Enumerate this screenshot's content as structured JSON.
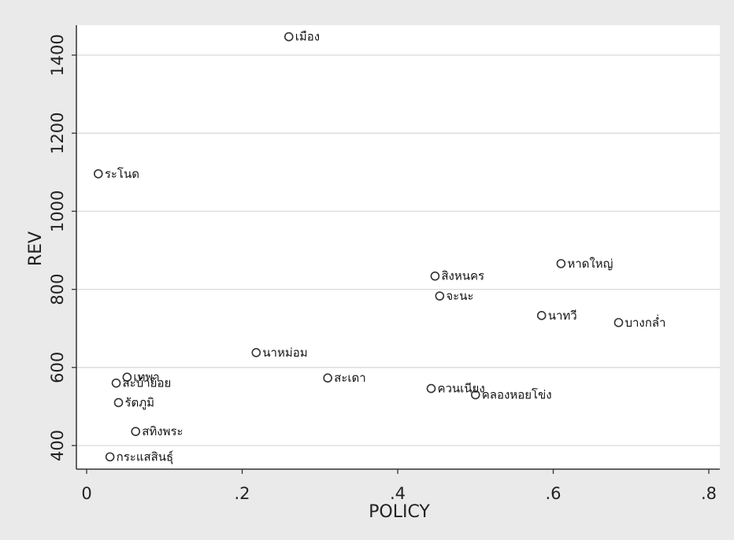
{
  "chart_data": {
    "type": "scatter",
    "xlabel": "POLICY",
    "ylabel": "REV",
    "xlim": [
      0,
      0.8
    ],
    "ylim": [
      350,
      1470
    ],
    "xticks": [
      0,
      0.2,
      0.4,
      0.6,
      0.8
    ],
    "xtick_labels": [
      "0",
      ".2",
      ".4",
      ".6",
      ".8"
    ],
    "yticks": [
      400,
      600,
      800,
      1000,
      1200,
      1400
    ],
    "ytick_labels": [
      "400",
      "600",
      "800",
      "1000",
      "1200",
      "1400"
    ],
    "grid": true,
    "marker": "hollow-circle",
    "points": [
      {
        "label": "เมือง",
        "x": 0.26,
        "y": 1447
      },
      {
        "label": "ระโนด",
        "x": 0.015,
        "y": 1096
      },
      {
        "label": "หาดใหญ่",
        "x": 0.61,
        "y": 866
      },
      {
        "label": "สิงหนคร",
        "x": 0.448,
        "y": 834
      },
      {
        "label": "จะนะ",
        "x": 0.454,
        "y": 783
      },
      {
        "label": "นาทวี",
        "x": 0.585,
        "y": 733
      },
      {
        "label": "บางกล่ำ",
        "x": 0.684,
        "y": 715
      },
      {
        "label": "นาหม่อม",
        "x": 0.218,
        "y": 638
      },
      {
        "label": "เทพา",
        "x": 0.052,
        "y": 575
      },
      {
        "label": "สะเดา",
        "x": 0.31,
        "y": 573
      },
      {
        "label": "สะบ้าย้อย",
        "x": 0.038,
        "y": 560
      },
      {
        "label": "ควนเนียง",
        "x": 0.443,
        "y": 546
      },
      {
        "label": "คลองหอยโข่ง",
        "x": 0.5,
        "y": 530
      },
      {
        "label": "รัตภูมิ",
        "x": 0.041,
        "y": 510
      },
      {
        "label": "สทิงพระ",
        "x": 0.063,
        "y": 436
      },
      {
        "label": "กระแสสินธุ์",
        "x": 0.03,
        "y": 371
      }
    ]
  }
}
